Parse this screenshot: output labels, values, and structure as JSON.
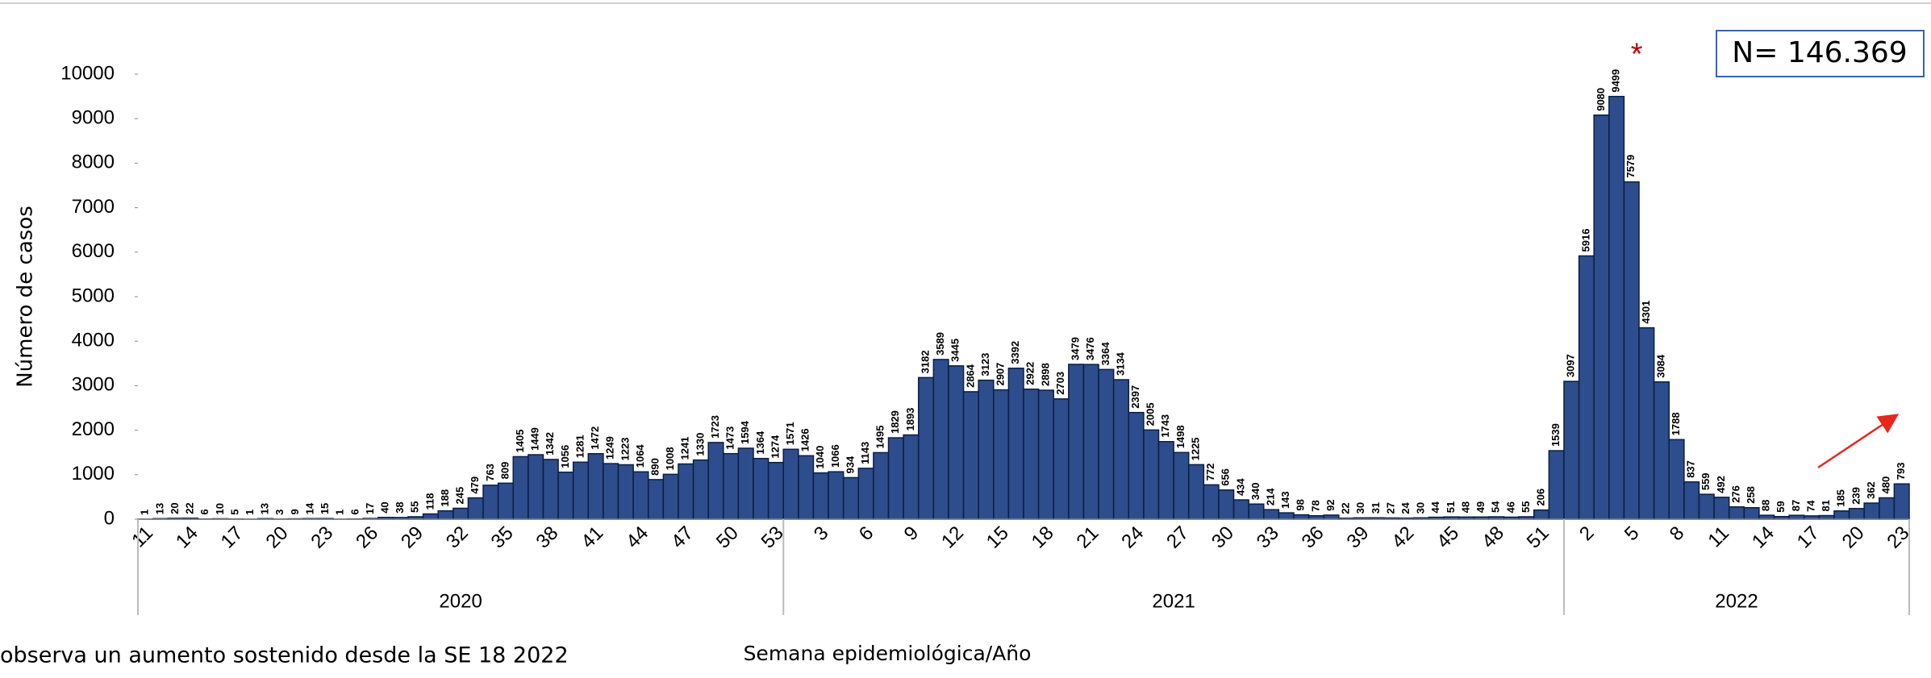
{
  "chart_data": {
    "type": "bar",
    "y_label": "Número de casos",
    "x_label": "Semana epidemiológica/Año",
    "note": "observa un aumento sostenido desde la SE 18 2022",
    "total_label": "N= 146.369",
    "peak_marker": "*",
    "color": "#2e4d8c",
    "ylim": [
      0,
      10000
    ],
    "yticks": [
      0,
      1000,
      2000,
      3000,
      4000,
      5000,
      6000,
      7000,
      8000,
      9000,
      10000
    ],
    "groups": [
      {
        "label": "2020",
        "size": 43
      },
      {
        "label": "2021",
        "size": 52
      },
      {
        "label": "2022",
        "size": 23
      }
    ],
    "categories": [
      "11",
      null,
      null,
      "14",
      null,
      null,
      "17",
      null,
      null,
      "20",
      null,
      null,
      "23",
      null,
      null,
      "26",
      null,
      null,
      "29",
      null,
      null,
      "32",
      null,
      null,
      "35",
      null,
      null,
      "38",
      null,
      null,
      "41",
      null,
      null,
      "44",
      null,
      null,
      "47",
      null,
      null,
      "50",
      null,
      null,
      "53",
      null,
      null,
      "3",
      null,
      null,
      "6",
      null,
      null,
      "9",
      null,
      null,
      "12",
      null,
      null,
      "15",
      null,
      null,
      "18",
      null,
      null,
      "21",
      null,
      null,
      "24",
      null,
      null,
      "27",
      null,
      null,
      "30",
      null,
      null,
      "33",
      null,
      null,
      "36",
      null,
      null,
      "39",
      null,
      null,
      "42",
      null,
      null,
      "45",
      null,
      null,
      "48",
      null,
      null,
      "51",
      null,
      null,
      "2",
      null,
      null,
      "5",
      null,
      null,
      "8",
      null,
      null,
      "11",
      null,
      null,
      "14",
      null,
      null,
      "17",
      null,
      null,
      "20",
      null,
      null,
      "23"
    ],
    "values": [
      1,
      13,
      20,
      22,
      6,
      10,
      5,
      1,
      13,
      3,
      9,
      14,
      15,
      1,
      6,
      17,
      40,
      38,
      55,
      118,
      188,
      245,
      479,
      763,
      809,
      1405,
      1449,
      1342,
      1056,
      1281,
      1472,
      1249,
      1223,
      1064,
      890,
      1008,
      1241,
      1330,
      1723,
      1473,
      1594,
      1364,
      1274,
      1571,
      1426,
      1040,
      1066,
      934,
      1143,
      1495,
      1829,
      1893,
      3182,
      3589,
      3445,
      2864,
      3123,
      2907,
      3392,
      2922,
      2898,
      2703,
      3479,
      3476,
      3364,
      3134,
      2397,
      2005,
      1743,
      1498,
      1225,
      772,
      656,
      434,
      340,
      214,
      143,
      98,
      78,
      92,
      22,
      30,
      31,
      27,
      24,
      30,
      44,
      51,
      48,
      49,
      54,
      46,
      55,
      206,
      1539,
      3097,
      5916,
      9080,
      9499,
      7579,
      4301,
      3084,
      1788,
      837,
      559,
      492,
      276,
      258,
      88,
      59,
      87,
      74,
      81,
      185,
      239,
      362,
      480,
      793
    ]
  }
}
